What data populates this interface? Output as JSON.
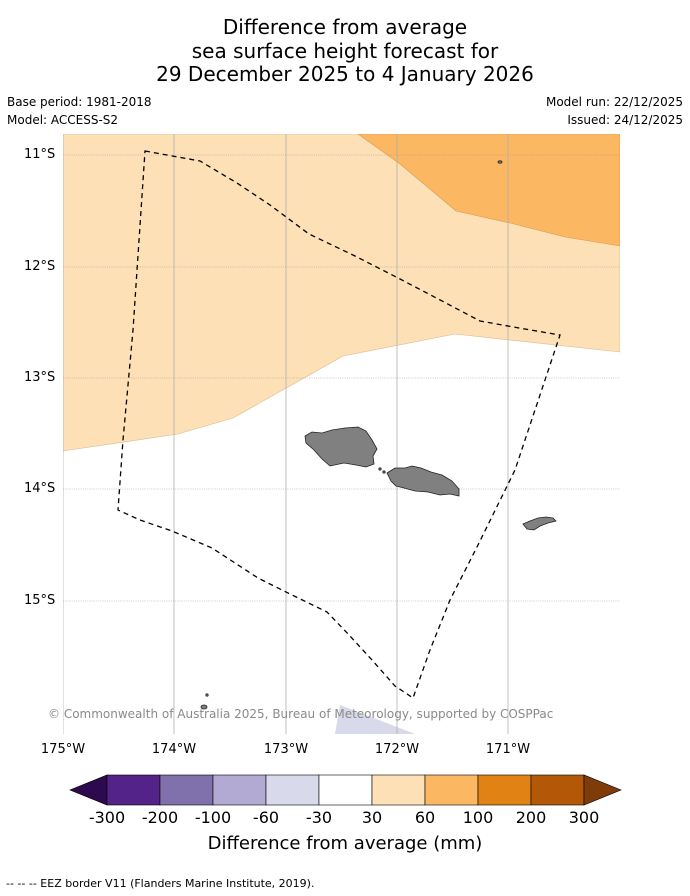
{
  "title": {
    "line1": "Difference from average",
    "line2": "sea surface height forecast for",
    "line3": "29 December 2025 to 4 January 2026"
  },
  "meta": {
    "base_period": "Base period: 1981-2018",
    "model": "Model: ACCESS-S2",
    "model_run": "Model run: 22/12/2025",
    "issued": "Issued: 24/12/2025"
  },
  "map": {
    "lat_labels": [
      "11°S",
      "12°S",
      "13°S",
      "14°S",
      "15°S"
    ],
    "lon_labels": [
      "175°W",
      "174°W",
      "173°W",
      "172°W",
      "171°W"
    ],
    "copyright": "© Commonwealth of Australia 2025, Bureau of Meteorology, supported by COSPPac"
  },
  "colorbar": {
    "title": "Difference from average (mm)",
    "ticks": [
      "-300",
      "-200",
      "-100",
      "-60",
      "-30",
      "30",
      "60",
      "100",
      "200",
      "300"
    ],
    "colors": {
      "below_min": "#2d0a4e",
      "-300_-200": "#54238a",
      "-200_-100": "#8071ac",
      "-100_-60": "#b2aad3",
      "-60_-30": "#d8d9ea",
      "-30_30": "#ffffff",
      "30_60": "#fde0b6",
      "60_100": "#fbb762",
      "100_200": "#e08214",
      "200_300": "#b35806",
      "above_max": "#7f3b08"
    }
  },
  "footer": {
    "legend": "--  --  -- EEZ border V11 (Flanders Marine Institute, 2019)."
  }
}
